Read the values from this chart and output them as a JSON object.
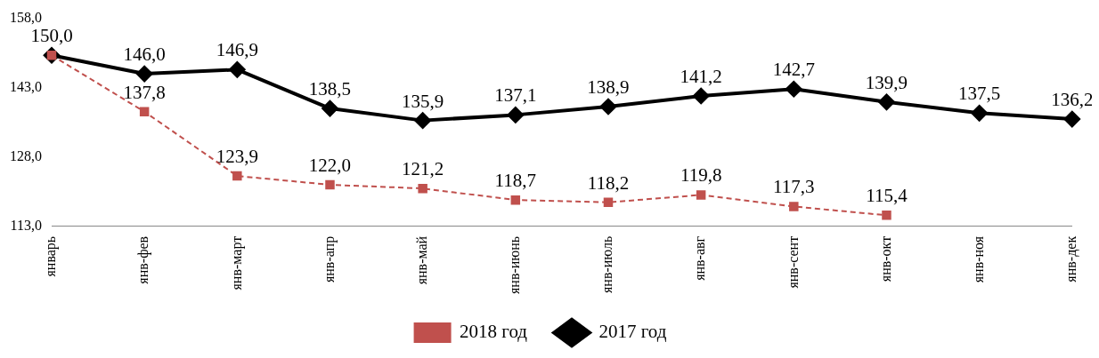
{
  "chart_data": {
    "type": "line",
    "categories": [
      "январь",
      "янв-фев",
      "янв-март",
      "янв-апр",
      "янв-май",
      "янв-июнь",
      "янв-июль",
      "янв-авг",
      "янв-сент",
      "янв-окт",
      "янв-ноя",
      "янв-дек"
    ],
    "series": [
      {
        "name": "2017 год",
        "color": "#000000",
        "marker": "diamond",
        "line_style": "solid",
        "values": [
          150.0,
          146.0,
          146.9,
          138.5,
          135.9,
          137.1,
          138.9,
          141.2,
          142.7,
          139.9,
          137.5,
          136.2
        ],
        "value_labels": [
          "150,0",
          "146,0",
          "146,9",
          "138,5",
          "135,9",
          "137,1",
          "138,9",
          "141,2",
          "142,7",
          "139,9",
          "137,5",
          "136,2"
        ]
      },
      {
        "name": "2018 год",
        "color": "#c0504d",
        "marker": "square",
        "line_style": "dashed",
        "values": [
          150.0,
          137.8,
          123.9,
          122.0,
          121.2,
          118.7,
          118.2,
          119.8,
          117.3,
          115.4,
          null,
          null
        ],
        "value_labels": [
          null,
          "137,8",
          "123,9",
          "122,0",
          "121,2",
          "118,7",
          "118,2",
          "119,8",
          "117,3",
          "115,4",
          null,
          null
        ]
      }
    ],
    "ylim": [
      113.0,
      158.0
    ],
    "yticks": [
      {
        "value": 113,
        "label": "113,0"
      },
      {
        "value": 128,
        "label": "128,0"
      },
      {
        "value": 143,
        "label": "143,0"
      },
      {
        "value": 158,
        "label": "158,0"
      }
    ],
    "grid": false,
    "legend": "bottom"
  }
}
